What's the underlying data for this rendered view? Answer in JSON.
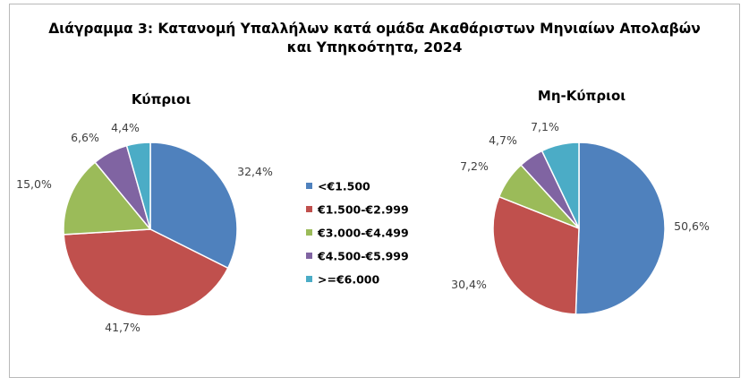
{
  "chart": {
    "title_line1": "Διάγραμμα 3: Κατανομή Υπαλλήλων κατά ομάδα Ακαθάριστων Μηνιαίων Απολαβών",
    "title_line2": "και Υπηκοότητα, 2024"
  },
  "chart_data": [
    {
      "type": "pie",
      "title": "Κύπριοι",
      "categories": [
        "<€1.500",
        "€1.500-€2.999",
        "€3.000-€4.499",
        "€4.500-€5.999",
        ">=€6.000"
      ],
      "values": [
        32.4,
        41.7,
        15.0,
        6.6,
        4.4
      ],
      "labels": [
        "32,4%",
        "41,7%",
        "15,0%",
        "6,6%",
        "4,4%"
      ]
    },
    {
      "type": "pie",
      "title": "Μη-Κύπριοι",
      "categories": [
        "<€1.500",
        "€1.500-€2.999",
        "€3.000-€4.499",
        "€4.500-€5.999",
        ">=€6.000"
      ],
      "values": [
        50.6,
        30.4,
        7.2,
        4.7,
        7.1
      ],
      "labels": [
        "50,6%",
        "30,4%",
        "7,2%",
        "4,7%",
        "7,1%"
      ]
    }
  ],
  "legend": {
    "items": [
      "<€1.500",
      "€1.500-€2.999",
      "€3.000-€4.499",
      "€4.500-€5.999",
      ">=€6.000"
    ],
    "placement": "center"
  },
  "colors": [
    "#4f81bd",
    "#c0504d",
    "#9bbb59",
    "#8064a2",
    "#4bacc6"
  ]
}
